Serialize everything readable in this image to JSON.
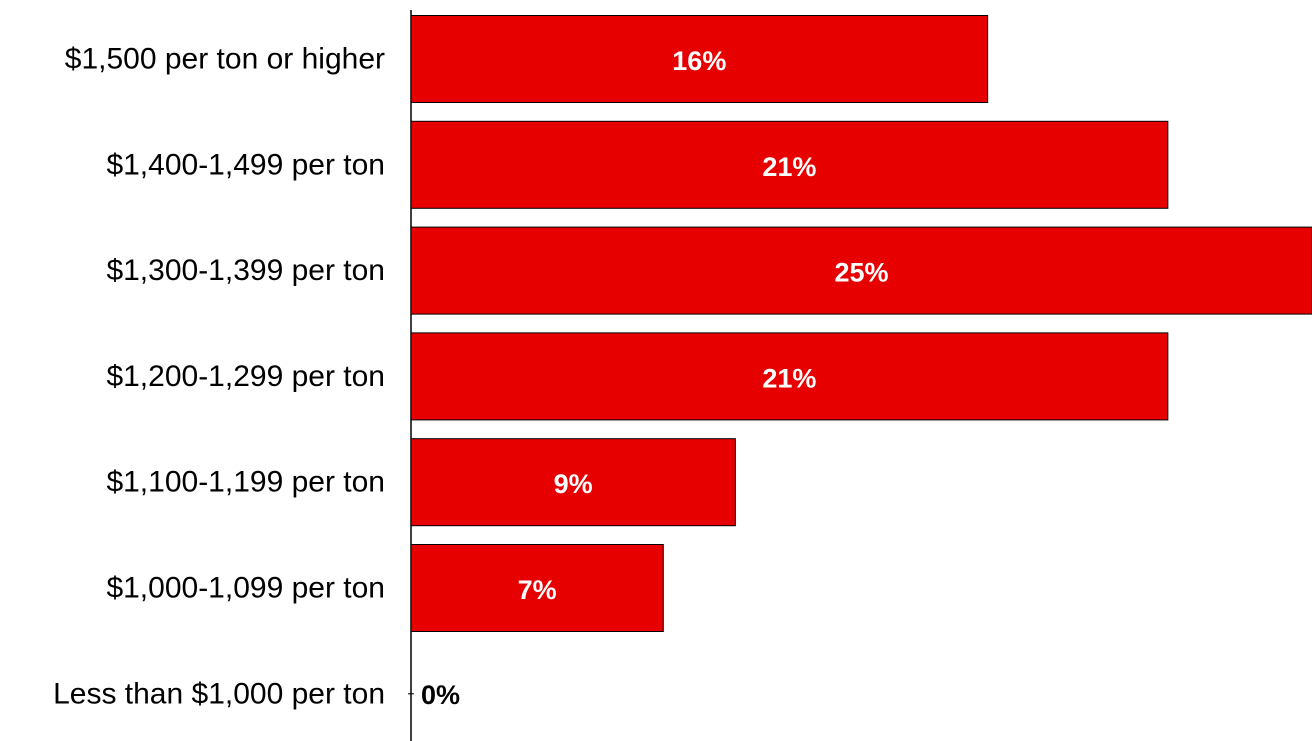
{
  "chart_data": {
    "type": "bar",
    "orientation": "horizontal",
    "categories": [
      "$1,500 per ton or higher",
      "$1,400-1,499 per ton",
      "$1,300-1,399 per ton",
      "$1,200-1,299 per ton",
      "$1,100-1,199 per ton",
      "$1,000-1,099 per ton",
      "Less than $1,000 per ton"
    ],
    "values": [
      16,
      21,
      25,
      21,
      9,
      7,
      0
    ],
    "data_labels": [
      "16%",
      "21%",
      "25%",
      "21%",
      "9%",
      "7%",
      "0%"
    ],
    "unit": "%",
    "xlim": [
      0,
      25
    ],
    "grid": false,
    "legend": "none",
    "colors": {
      "bar_fill": "#e60000",
      "bar_stroke": "#000000",
      "label_inside": "#ffffff",
      "label_outside": "#000000",
      "axis": "#000000"
    }
  }
}
